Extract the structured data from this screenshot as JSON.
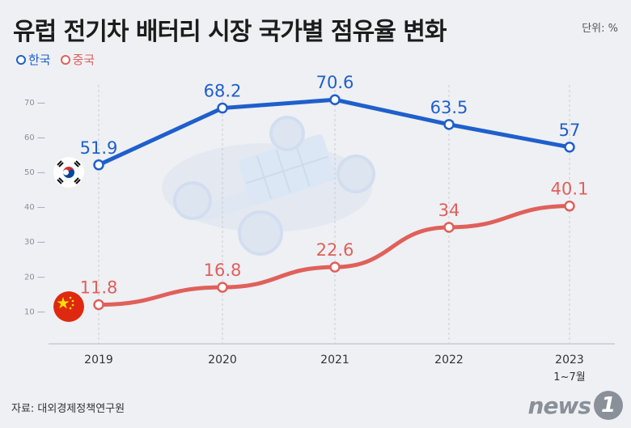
{
  "header": {
    "title": "유럽 전기차 배터리 시장 국가별 점유율 변화",
    "unit": "단위: %"
  },
  "footer": {
    "source": "자료: 대외경제정책연구원",
    "logo_text": "news",
    "logo_badge": "1"
  },
  "colors": {
    "korea": "#1f5fcc",
    "china": "#e0605a",
    "grid": "#c9ccd2",
    "background": "#eef0f4"
  },
  "chart_data": {
    "type": "line",
    "categories": [
      "2019",
      "2020",
      "2021",
      "2022",
      "2023"
    ],
    "category_sublabels": [
      "",
      "",
      "",
      "",
      "1~7월"
    ],
    "series": [
      {
        "name": "한국",
        "values": [
          51.9,
          68.2,
          70.6,
          63.5,
          57
        ],
        "value_labels": [
          "51.9",
          "68.2",
          "70.6",
          "63.5",
          "57"
        ]
      },
      {
        "name": "중국",
        "values": [
          11.8,
          16.8,
          22.6,
          34,
          40.1
        ],
        "value_labels": [
          "11.8",
          "16.8",
          "22.6",
          "34",
          "40.1"
        ]
      }
    ],
    "y_ticks": [
      10,
      20,
      30,
      40,
      50,
      60,
      70
    ],
    "ylim": [
      0,
      80
    ],
    "grid": "vertical dashed",
    "legend": "top-left"
  }
}
